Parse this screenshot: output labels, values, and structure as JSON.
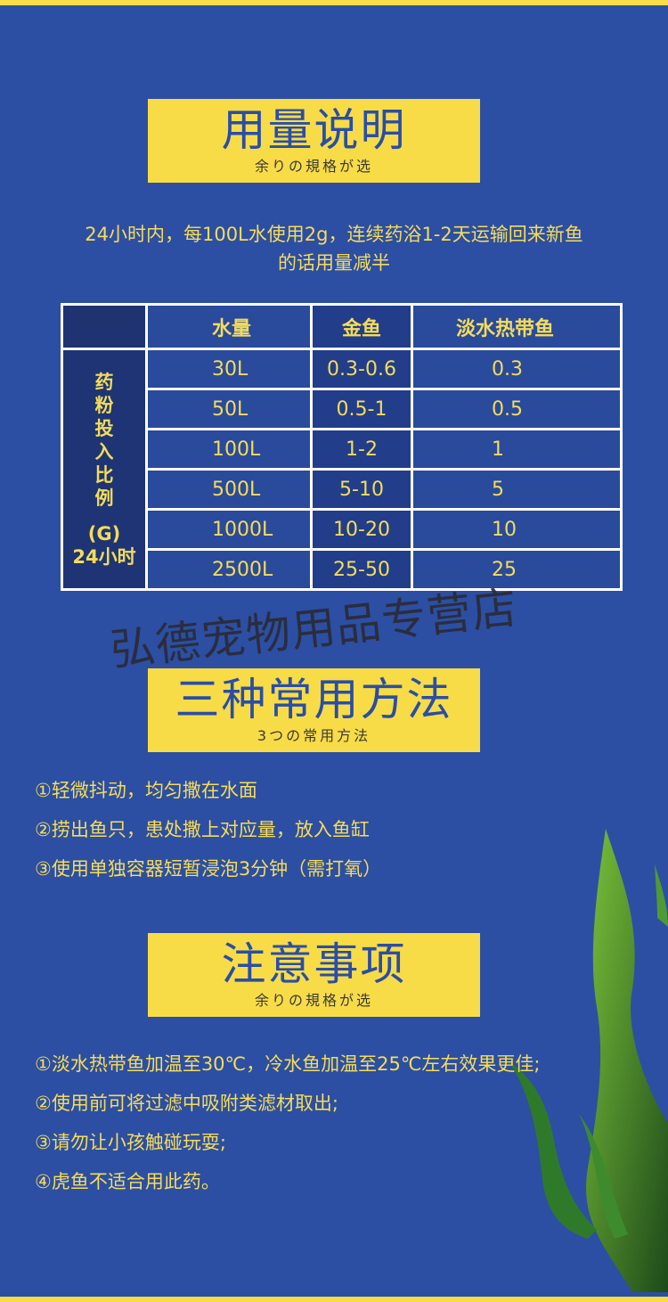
{
  "section1": {
    "title": "用量说明",
    "subtitle": "余りの規格が选"
  },
  "intro": {
    "line1": "24小时内，每100L水使用2g，连续药浴1-2天运输回来新鱼",
    "line2": "的话用量减半"
  },
  "table": {
    "side_label": [
      "药",
      "粉",
      "投",
      "入",
      "比",
      "例"
    ],
    "side_unit": "(G)",
    "side_time": "24小时",
    "headers": [
      "水量",
      "金鱼",
      "淡水热带鱼"
    ],
    "rows": [
      [
        "30L",
        "0.3-0.6",
        "0.3"
      ],
      [
        "50L",
        "0.5-1",
        "0.5"
      ],
      [
        "100L",
        "1-2",
        "1"
      ],
      [
        "500L",
        "5-10",
        "5"
      ],
      [
        "1000L",
        "10-20",
        "10"
      ],
      [
        "2500L",
        "25-50",
        "25"
      ]
    ]
  },
  "watermark": "弘德宠物用品专营店",
  "section2": {
    "title": "三种常用方法",
    "subtitle": "3つの常用方法",
    "items": [
      "①轻微抖动，均匀撒在水面",
      "②捞出鱼只，患处撒上对应量，放入鱼缸",
      "③使用单独容器短暂浸泡3分钟（需打氧）"
    ]
  },
  "section3": {
    "title": "注意事项",
    "subtitle": "余りの規格が选",
    "items": [
      "①淡水热带鱼加温至30℃，冷水鱼加温至25℃左右效果更佳;",
      "②使用前可将过滤中吸附类滤材取出;",
      "③请勿让小孩触碰玩耍;",
      "④虎鱼不适合用此药。"
    ]
  },
  "colors": {
    "background": "#2c4fa3",
    "accent_yellow": "#f8dc47",
    "title_blue": "#2a4ea6",
    "text_yellow": "#f6dc58"
  }
}
